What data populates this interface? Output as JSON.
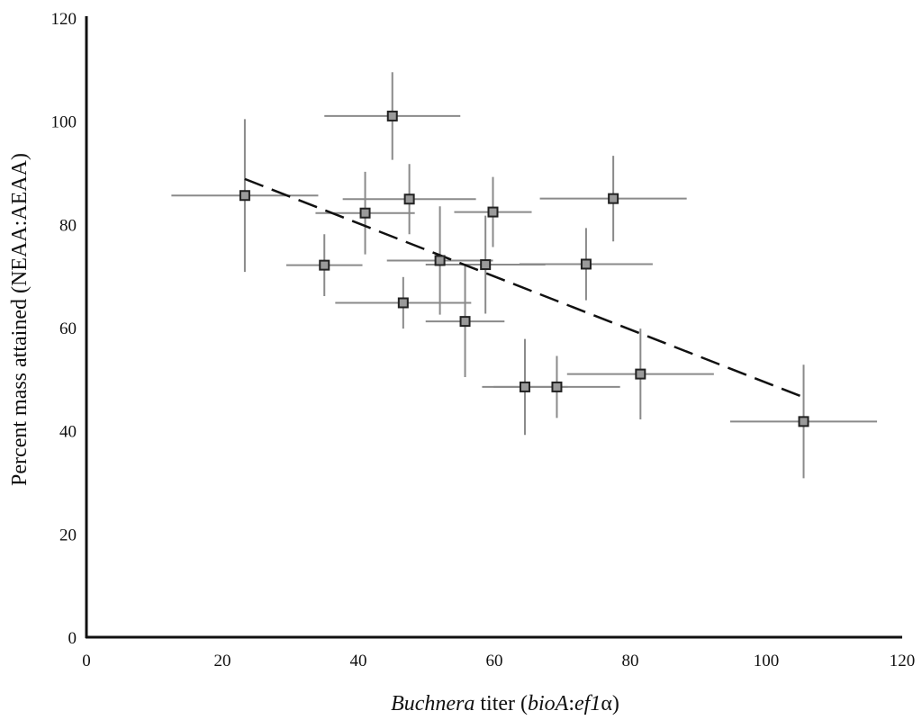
{
  "chart_data": {
    "type": "scatter",
    "title": "",
    "xlabel_parts": [
      {
        "text": "Buchnera",
        "italic": true
      },
      {
        "text": " titer (",
        "italic": false
      },
      {
        "text": "bioA",
        "italic": true
      },
      {
        "text": ":",
        "italic": false
      },
      {
        "text": "ef1",
        "italic": true
      },
      {
        "text": "α",
        "italic": false
      },
      {
        "text": ")",
        "italic": false
      }
    ],
    "ylabel": "Percent mass attained (NEAA:AEAA)",
    "xlim": [
      0,
      120
    ],
    "ylim": [
      0,
      120
    ],
    "xticks": [
      "0",
      "20",
      "40",
      "60",
      "80",
      "100",
      "120"
    ],
    "yticks": [
      "0",
      "20",
      "40",
      "60",
      "80",
      "100",
      "120"
    ],
    "grid": false,
    "points": [
      {
        "x": 23.3,
        "y": 85.6,
        "xerr": 10.8,
        "yerr": 14.8
      },
      {
        "x": 35.0,
        "y": 72.1,
        "xerr": 5.6,
        "yerr": 6.0
      },
      {
        "x": 41.0,
        "y": 82.2,
        "xerr": 7.3,
        "yerr": 8.0
      },
      {
        "x": 45.0,
        "y": 101.0,
        "xerr": 10.0,
        "yerr": 8.5
      },
      {
        "x": 46.6,
        "y": 64.8,
        "xerr": 10.0,
        "yerr": 5.0
      },
      {
        "x": 47.5,
        "y": 84.9,
        "xerr": 9.8,
        "yerr": 6.8
      },
      {
        "x": 52.0,
        "y": 73.0,
        "xerr": 7.8,
        "yerr": 10.5
      },
      {
        "x": 55.7,
        "y": 61.2,
        "xerr": 5.8,
        "yerr": 10.8
      },
      {
        "x": 58.7,
        "y": 72.2,
        "xerr": 8.8,
        "yerr": 9.5
      },
      {
        "x": 59.8,
        "y": 82.4,
        "xerr": 5.7,
        "yerr": 6.8
      },
      {
        "x": 64.5,
        "y": 48.5,
        "xerr": 6.3,
        "yerr": 9.3
      },
      {
        "x": 69.2,
        "y": 48.5,
        "xerr": 9.3,
        "yerr": 6.0
      },
      {
        "x": 73.5,
        "y": 72.3,
        "xerr": 9.8,
        "yerr": 7.0
      },
      {
        "x": 77.5,
        "y": 85.0,
        "xerr": 10.8,
        "yerr": 8.3
      },
      {
        "x": 81.5,
        "y": 51.0,
        "xerr": 10.8,
        "yerr": 8.8
      },
      {
        "x": 105.5,
        "y": 41.8,
        "xerr": 10.8,
        "yerr": 11.0
      }
    ],
    "trendline": {
      "style": "dashed",
      "x": [
        23.3,
        105.5
      ],
      "y": [
        88.8,
        46.5
      ]
    },
    "colors": {
      "errorbar": "#8a8a8a",
      "marker_edge": "#222222",
      "marker_fill": "#9a9a9a",
      "axis": "#111111",
      "trendline": "#111111"
    }
  }
}
